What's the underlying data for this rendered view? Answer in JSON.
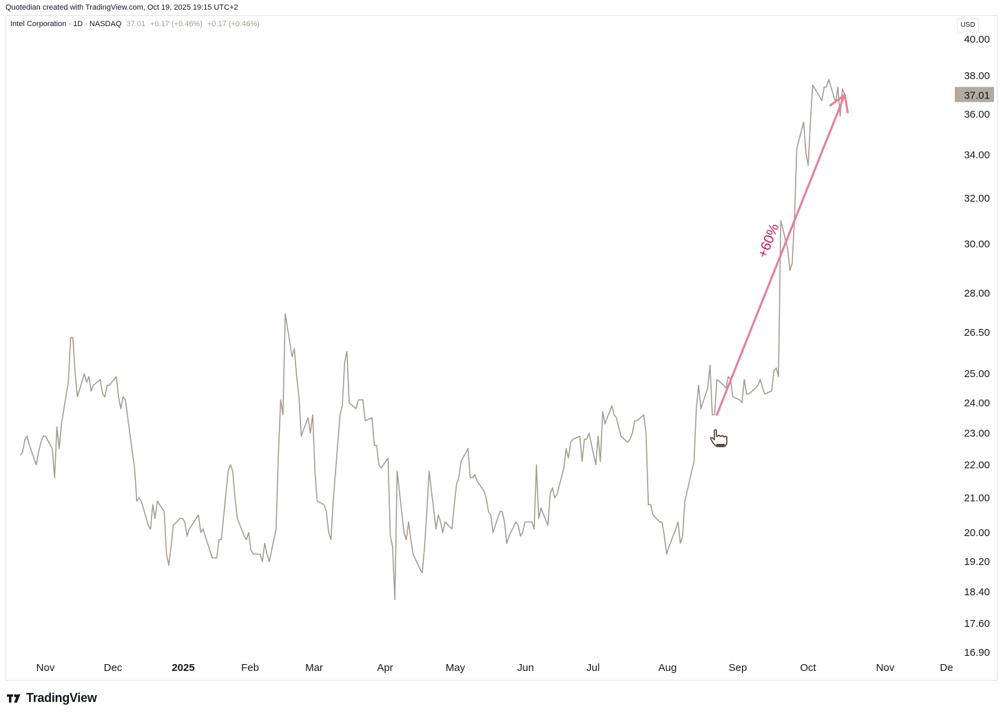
{
  "header": {
    "credit": "Quotedian created with TradingView.com, Oct 19, 2025 19:15 UTC+2"
  },
  "legend": {
    "symbol": "Intel Corporation · 1D · NASDAQ",
    "price": "37.01",
    "change1": "+0.17 (+0.46%)",
    "change2": "+0.17 (+0.46%)"
  },
  "currency_button": "USD",
  "footer": {
    "brand": "TradingView",
    "logo_icon": "tradingview-logo-icon"
  },
  "colors": {
    "line": "#a59c8f",
    "annotation": "#e77c9a",
    "annotation_text": "#c2185b",
    "price_label_bg": "#b3aa9e"
  },
  "cursor_icon": "hand-pointer-icon",
  "chart_data": {
    "type": "line",
    "title": "Intel Corporation · 1D · NASDAQ",
    "scale": "log",
    "ylim": [
      16.9,
      40.0
    ],
    "yticks": [
      "40.00",
      "38.00",
      "36.00",
      "34.00",
      "32.00",
      "30.00",
      "28.00",
      "26.50",
      "25.00",
      "24.00",
      "23.00",
      "22.00",
      "21.00",
      "20.00",
      "19.20",
      "18.40",
      "17.60",
      "16.90"
    ],
    "xticks": [
      "Nov",
      "Dec",
      "2025",
      "Feb",
      "Mar",
      "Apr",
      "May",
      "Jun",
      "Jul",
      "Aug",
      "Sep",
      "Oct",
      "Nov",
      "De"
    ],
    "grid": false,
    "last_price_label": "37.01",
    "annotation": {
      "label": "+60%",
      "from": [
        "2025-08-22",
        23.6
      ],
      "to": [
        "2025-10-17",
        37.0
      ]
    },
    "series": [
      {
        "start": "2024-10-21",
        "values": [
          22.3,
          22.4,
          22.8,
          22.9,
          22.6,
          22.0,
          22.4,
          22.7,
          22.9,
          22.9,
          22.5,
          21.6,
          23.2,
          22.5,
          23.3,
          24.7,
          26.3,
          26.3,
          25.0,
          24.2,
          25.0,
          24.7,
          24.9,
          24.4,
          24.6,
          24.8,
          24.3,
          24.2,
          24.6,
          24.6,
          24.9,
          24.2,
          23.8,
          24.2,
          24.1,
          22.4,
          21.9,
          20.9,
          21.0,
          20.9,
          20.2,
          20.1,
          20.8,
          20.4,
          20.9,
          20.6,
          19.4,
          19.1,
          19.6,
          20.2,
          20.4,
          20.4,
          20.3,
          19.9,
          20.1,
          20.4,
          20.5,
          20.0,
          20.1,
          19.9,
          19.3,
          19.3,
          19.3,
          19.8,
          19.8,
          21.8,
          22.0,
          21.8,
          21.0,
          20.4,
          19.9,
          19.8,
          20.0,
          19.5,
          19.4,
          19.4,
          19.2,
          19.7,
          19.4,
          19.2,
          20.1,
          22.3,
          24.1,
          23.6,
          27.2,
          25.6,
          25.9,
          24.9,
          24.2,
          22.9,
          23.5,
          23.0,
          23.6,
          21.8,
          20.9,
          20.8,
          20.6,
          20.0,
          19.8,
          20.9,
          23.6,
          23.9,
          25.4,
          25.8,
          24.0,
          23.8,
          24.1,
          24.1,
          24.1,
          23.4,
          23.5,
          22.6,
          22.6,
          22.0,
          21.9,
          22.2,
          19.9,
          19.6,
          18.2,
          21.8,
          20.0,
          19.8,
          20.3,
          19.8,
          19.4,
          19.0,
          18.9,
          19.6,
          20.6,
          21.8,
          20.1,
          20.5,
          20.3,
          20.0,
          20.3,
          20.1,
          20.8,
          21.4,
          21.6,
          22.1,
          22.5,
          21.6,
          21.6,
          21.7,
          21.5,
          21.2,
          21.0,
          20.6,
          20.5,
          20.0,
          20.6,
          20.6,
          20.3,
          19.7,
          19.9,
          20.3,
          20.2,
          19.9,
          20.0,
          20.3,
          20.3,
          20.1,
          22.0,
          20.4,
          20.7,
          20.2,
          21.1,
          21.3,
          21.0,
          21.1,
          21.9,
          22.5,
          22.2,
          22.7,
          22.8,
          22.9,
          22.1,
          22.8,
          22.8,
          23.0,
          22.0,
          22.9,
          22.1,
          23.7,
          23.3,
          23.9,
          23.6,
          23.5,
          23.2,
          22.9,
          22.7,
          22.8,
          23.0,
          23.4,
          23.4,
          23.6,
          23.0,
          20.8,
          20.8,
          20.5,
          20.3,
          20.3,
          19.9,
          19.4,
          19.6,
          20.1,
          20.3,
          19.7,
          19.9,
          20.9,
          21.8,
          22.1,
          23.8,
          24.6,
          23.8,
          24.5,
          25.3,
          23.6,
          23.6,
          24.8,
          24.6,
          24.5,
          24.9,
          24.8,
          24.2,
          24.1,
          24.0,
          24.8,
          24.3,
          24.3,
          24.5,
          24.6,
          24.8,
          24.5,
          24.3,
          24.4,
          25.1,
          25.2,
          24.9,
          31.0,
          29.8,
          28.9,
          29.2,
          31.1,
          34.3,
          35.6,
          34.1,
          33.5,
          35.7,
          37.5,
          36.9,
          36.7,
          37.4,
          37.4,
          37.8,
          36.6,
          37.4,
          35.9,
          37.3,
          37.0
        ]
      }
    ]
  }
}
